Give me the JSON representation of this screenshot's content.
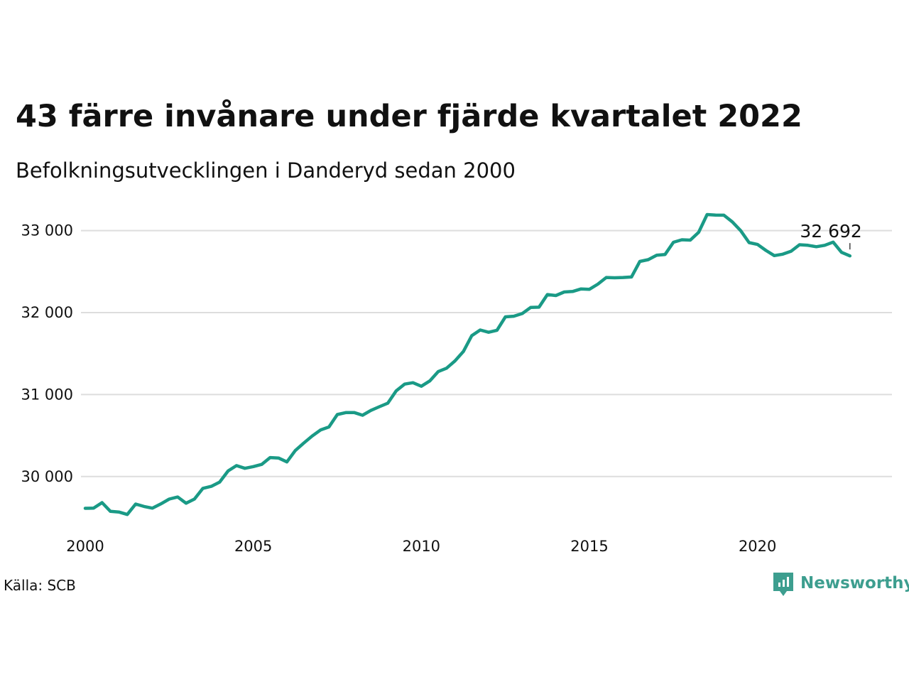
{
  "chart_data": {
    "type": "line",
    "title": "43 färre invånare under fjärde kvartalet 2022",
    "subtitle": "Befolkningsutvecklingen i Danderyd sedan 2000",
    "source": "Källa: SCB",
    "brand": "Newsworthy",
    "xlim": [
      2000,
      2024
    ],
    "ylim": [
      29400,
      33300
    ],
    "x_ticks": [
      2000,
      2005,
      2010,
      2015,
      2020
    ],
    "x_tick_labels": [
      "2000",
      "2005",
      "2010",
      "2015",
      "2020"
    ],
    "y_ticks": [
      30000,
      31000,
      32000,
      33000
    ],
    "y_tick_labels": [
      "30 000",
      "31 000",
      "32 000",
      "33 000"
    ],
    "grid": "horizontal",
    "annotation": {
      "label": "32 692",
      "x": 2022.75,
      "y": 32692
    },
    "colors": {
      "line": "#1a9a86",
      "grid": "#dddddd",
      "brand": "#3d9e8f"
    },
    "series": [
      {
        "x": [
          2000.0,
          2000.25,
          2000.5,
          2000.75,
          2001.0,
          2001.25,
          2001.5,
          2001.75,
          2002.0,
          2002.25,
          2002.5,
          2002.75,
          2003.0,
          2003.25,
          2003.5,
          2003.75,
          2004.0,
          2004.25,
          2004.5,
          2004.75,
          2005.0,
          2005.25,
          2005.5,
          2005.75,
          2006.0,
          2006.25,
          2006.5,
          2006.75,
          2007.0,
          2007.25,
          2007.5,
          2007.75,
          2008.0,
          2008.25,
          2008.5,
          2008.75,
          2009.0,
          2009.25,
          2009.5,
          2009.75,
          2010.0,
          2010.25,
          2010.5,
          2010.75,
          2011.0,
          2011.25,
          2011.5,
          2011.75,
          2012.0,
          2012.25,
          2012.5,
          2012.75,
          2013.0,
          2013.25,
          2013.5,
          2013.75,
          2014.0,
          2014.25,
          2014.5,
          2014.75,
          2015.0,
          2015.25,
          2015.5,
          2015.75,
          2016.0,
          2016.25,
          2016.5,
          2016.75,
          2017.0,
          2017.25,
          2017.5,
          2017.75,
          2018.0,
          2018.25,
          2018.5,
          2018.75,
          2019.0,
          2019.25,
          2019.5,
          2019.75,
          2020.0,
          2020.25,
          2020.5,
          2020.75,
          2021.0,
          2021.25,
          2021.5,
          2021.75,
          2022.0,
          2022.25,
          2022.5,
          2022.75
        ],
        "values": [
          29612,
          29614,
          29682,
          29575,
          29567,
          29537,
          29664,
          29635,
          29614,
          29666,
          29725,
          29750,
          29675,
          29725,
          29856,
          29880,
          29932,
          30068,
          30133,
          30100,
          30121,
          30148,
          30231,
          30226,
          30178,
          30317,
          30408,
          30494,
          30567,
          30605,
          30756,
          30780,
          30781,
          30748,
          30807,
          30852,
          30894,
          31044,
          31127,
          31145,
          31101,
          31166,
          31280,
          31321,
          31411,
          31525,
          31718,
          31788,
          31760,
          31784,
          31948,
          31956,
          31988,
          32062,
          32066,
          32220,
          32208,
          32251,
          32257,
          32289,
          32284,
          32347,
          32428,
          32425,
          32428,
          32434,
          32624,
          32646,
          32699,
          32709,
          32858,
          32888,
          32884,
          32979,
          33196,
          33190,
          33188,
          33107,
          32999,
          32854,
          32831,
          32758,
          32695,
          32712,
          32749,
          32828,
          32821,
          32803,
          32821,
          32860,
          32735,
          32692
        ]
      }
    ]
  }
}
